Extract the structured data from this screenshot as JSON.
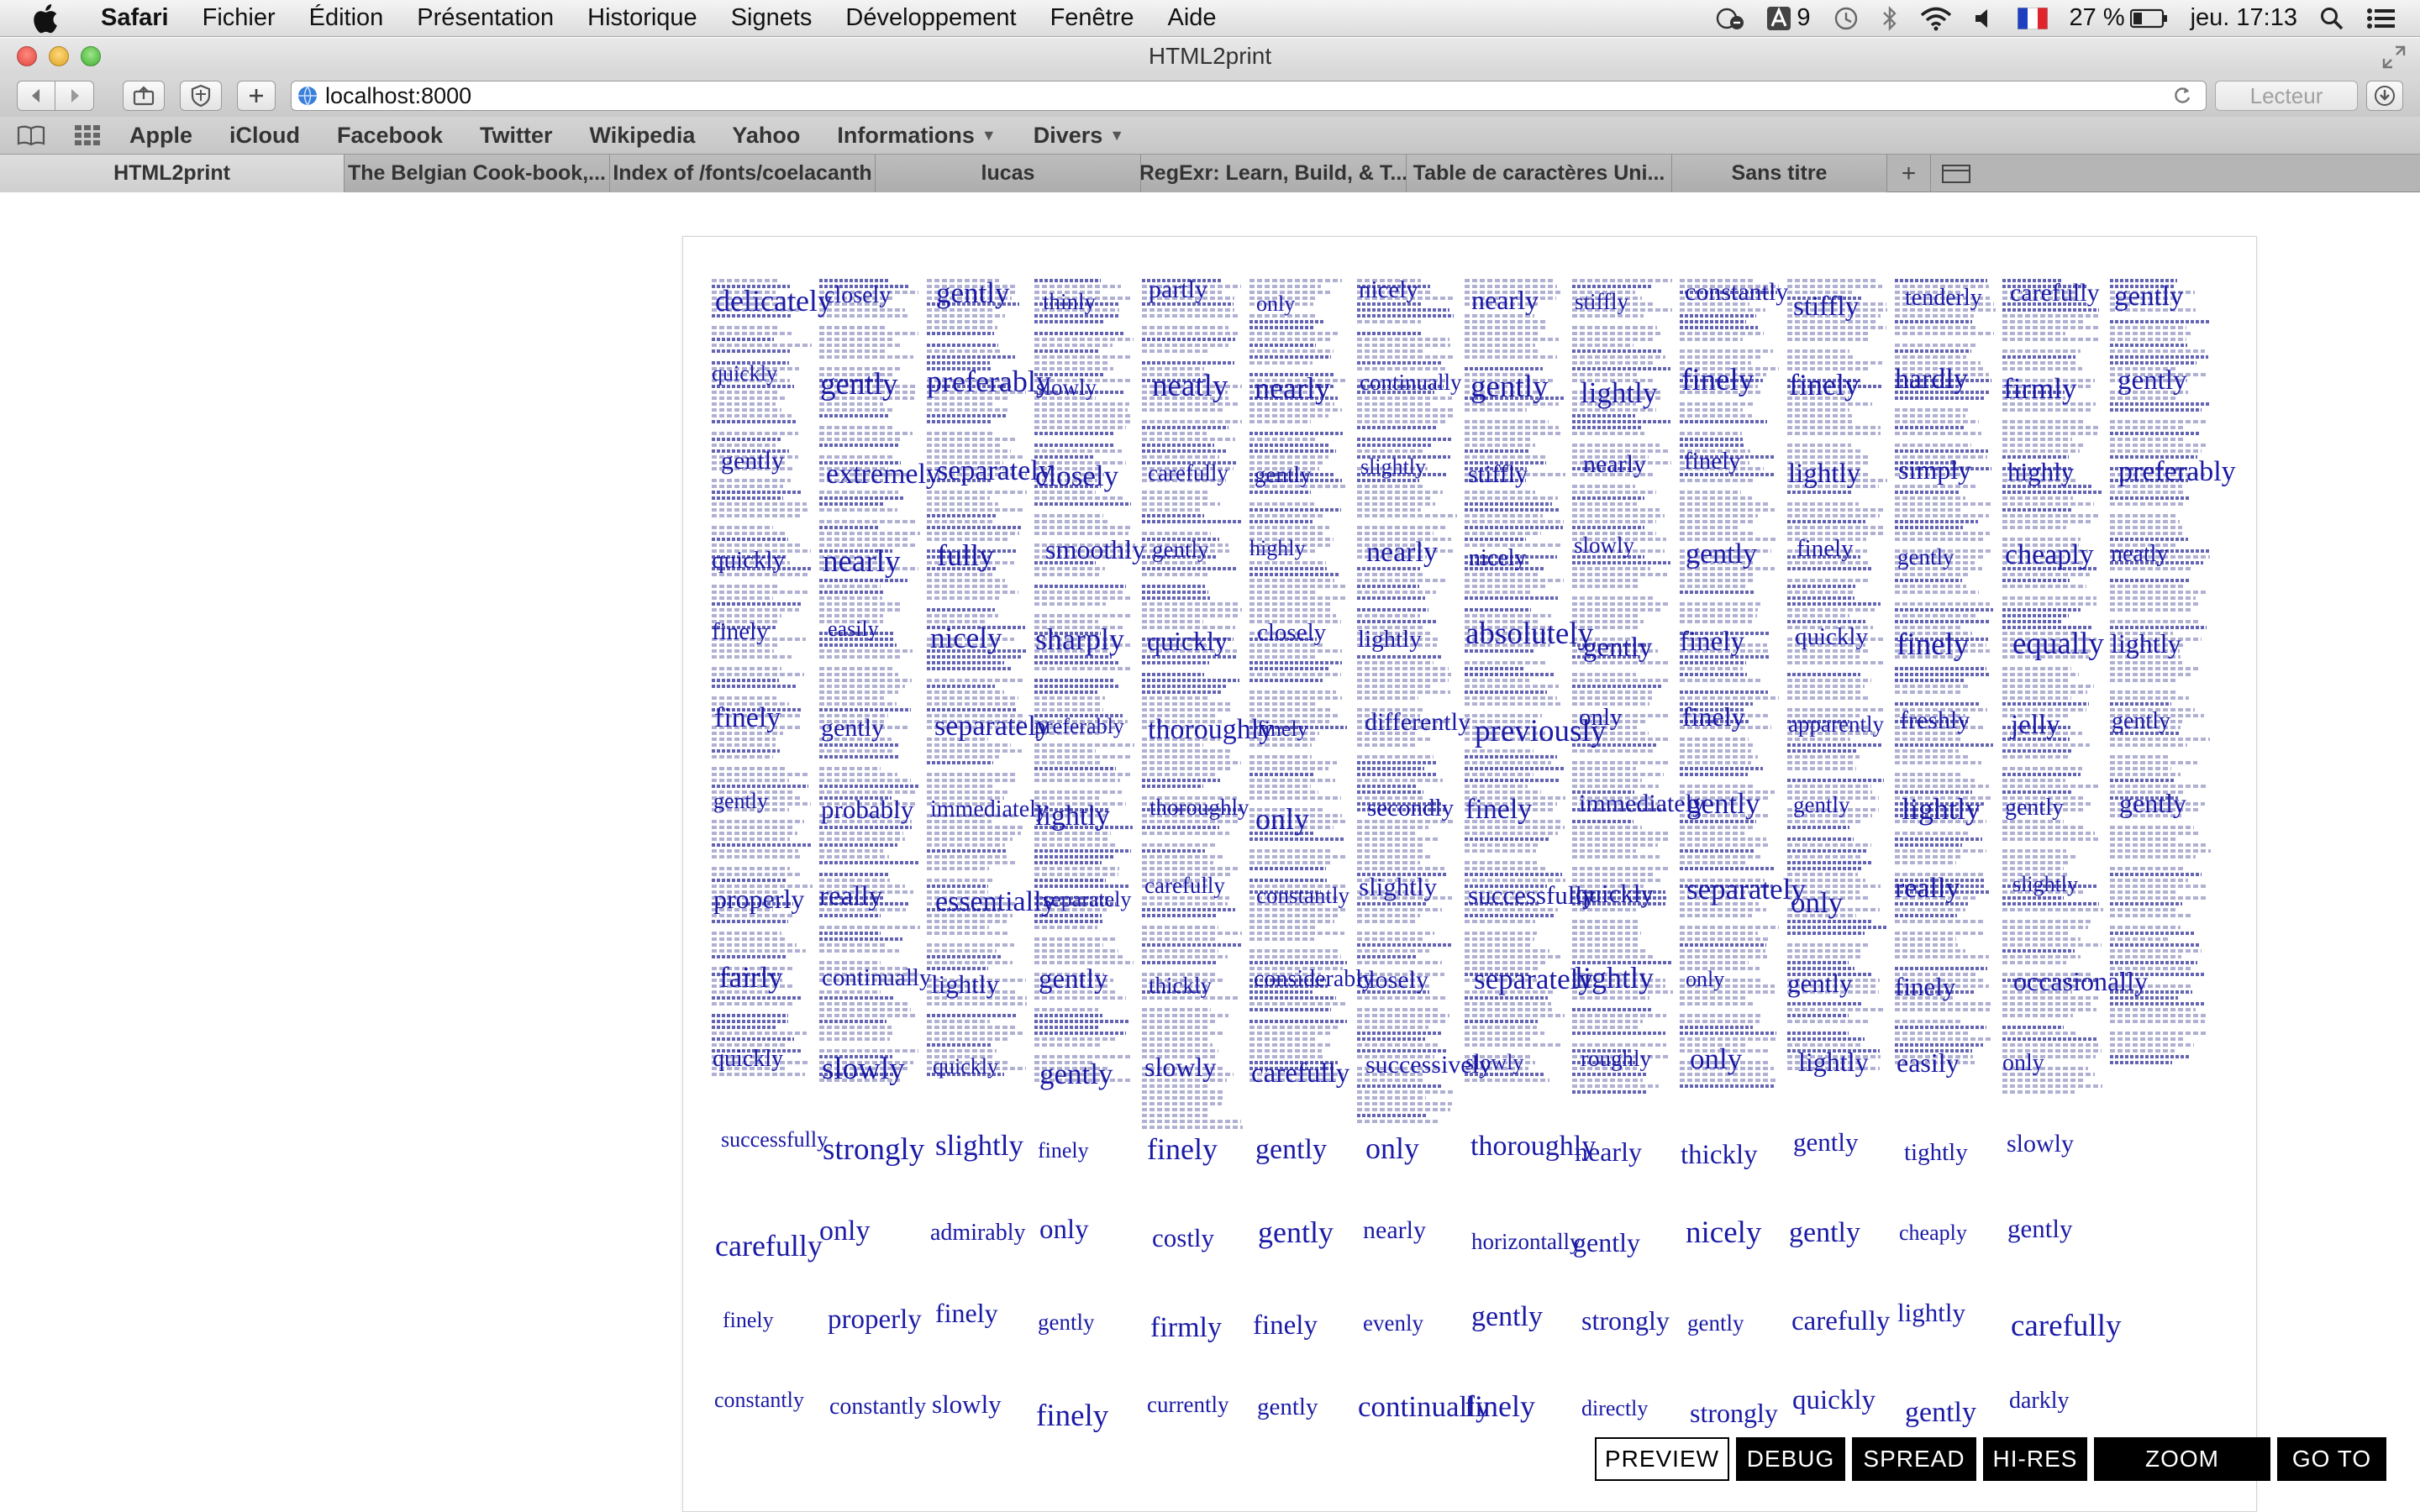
{
  "menubar": {
    "app": "Safari",
    "menus": [
      "Fichier",
      "Édition",
      "Présentation",
      "Historique",
      "Signets",
      "Développement",
      "Fenêtre",
      "Aide"
    ],
    "status": {
      "notification_count": "9",
      "battery": "27 %",
      "clock": "jeu. 17:13"
    }
  },
  "window": {
    "title": "HTML2print",
    "url": "localhost:8000",
    "reader_label": "Lecteur"
  },
  "bookmarks": {
    "items": [
      "Apple",
      "iCloud",
      "Twitter",
      "Wikipedia",
      "Yahoo"
    ],
    "folders": [
      "Informations",
      "Divers"
    ],
    "facebook": "Facebook"
  },
  "tabs": [
    "HTML2print",
    "The Belgian Cook-book,...",
    "Index of /fonts/coelacanth",
    "lucas",
    "RegExr: Learn, Build, & T...",
    "Table de caractères Uni...",
    "Sans titre"
  ],
  "debug_toolbar": {
    "preview": "PREVIEW",
    "debug": "DEBUG",
    "spread": "SPREAD",
    "hires": "HI-RES",
    "zoom": "ZOOM",
    "goto": "GO TO",
    "active": "preview"
  },
  "page_words": [
    "delicately",
    "quickly",
    "gently",
    "quickly",
    "finely",
    "finely",
    "gently",
    "properly",
    "fairly",
    "quickly",
    "successfully",
    "carefully",
    "finely",
    "constantly",
    "closely",
    "gently",
    "extremely",
    "nearly",
    "easily",
    "gently",
    "probably",
    "really",
    "continually",
    "slowly",
    "strongly",
    "only",
    "properly",
    "constantly",
    "gently",
    "preferably",
    "separately",
    "fully",
    "nicely",
    "separately",
    "immediately",
    "essentially",
    "lightly",
    "quickly",
    "slightly",
    "admirably",
    "finely",
    "slowly",
    "thinly",
    "slowly",
    "closely",
    "smoothly",
    "sharply",
    "preferably",
    "lightly",
    "separately",
    "gently",
    "gently",
    "finely",
    "only",
    "gently",
    "finely",
    "partly",
    "neatly",
    "carefully",
    "gently",
    "quickly",
    "thoroughly",
    "thoroughly",
    "carefully",
    "thickly",
    "slowly",
    "finely",
    "costly",
    "firmly",
    "currently",
    "only",
    "nearly",
    "gently",
    "highly",
    "closely",
    "finely",
    "only",
    "constantly",
    "considerably",
    "carefully",
    "gently",
    "gently",
    "finely",
    "gently",
    "nicely",
    "continually",
    "slightly",
    "nearly",
    "lightly",
    "differently",
    "secondly",
    "slightly",
    "closely",
    "successively",
    "only",
    "nearly",
    "evenly",
    "continually",
    "nearly",
    "gently",
    "stiffly",
    "nicely",
    "absolutely",
    "previously",
    "finely",
    "successfully",
    "separately",
    "slowly",
    "thoroughly",
    "horizontally",
    "gently",
    "finely",
    "stiffly",
    "lightly",
    "nearly",
    "slowly",
    "gently",
    "only",
    "immediately",
    "quickly",
    "lightly",
    "roughly",
    "nearly",
    "gently",
    "strongly",
    "directly",
    "constantly",
    "finely",
    "finely",
    "gently",
    "finely",
    "finely",
    "gently",
    "separately",
    "only",
    "only",
    "thickly",
    "nicely",
    "gently",
    "strongly",
    "stiffly",
    "finely",
    "lightly",
    "finely",
    "quickly",
    "apparently",
    "gently",
    "only",
    "gently",
    "lightly",
    "gently",
    "gently",
    "carefully",
    "quickly",
    "tenderly",
    "hardly",
    "simply",
    "gently",
    "finely",
    "freshly",
    "lightly",
    "really",
    "finely",
    "easily",
    "tightly",
    "cheaply",
    "lightly",
    "gently",
    "carefully",
    "firmly",
    "highly",
    "cheaply",
    "equally",
    "jelly",
    "gently",
    "slightly",
    "occasionally",
    "only",
    "slowly",
    "gently",
    "carefully",
    "darkly",
    "gently",
    "gently",
    "preferably",
    "neatly",
    "lightly",
    "gently",
    "gently"
  ]
}
